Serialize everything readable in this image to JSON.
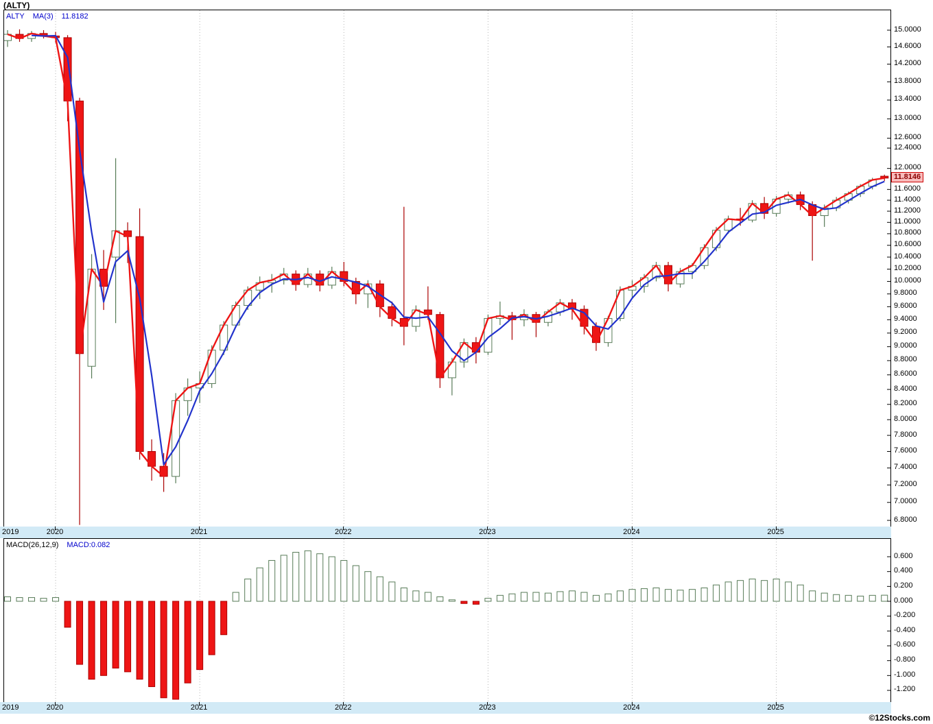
{
  "title": "(ALTY)",
  "legend": {
    "symbol": "ALTY",
    "ma_label": "MA(3)",
    "ma_value": "11.8182"
  },
  "macd_legend": {
    "label": "MACD(26,12,9)",
    "value": "MACD:0.082"
  },
  "price_tag": "11.8146",
  "watermark": "©12Stocks.com",
  "colors": {
    "legend_blue": "#0000cc",
    "up_stroke": "#567a56",
    "down_fill": "#ee1515",
    "down_stroke": "#aa0000",
    "close_line": "#ee1515",
    "ma_line": "#2233cc",
    "grid": "#b5b5b5",
    "axis_strip_bg": "#d2eaf6",
    "tag_bg": "#f8bcbc",
    "tag_border": "#cc0000",
    "tag_text": "#8b0000"
  },
  "chart_data": [
    {
      "type": "candlestick",
      "symbol": "ALTY",
      "interval": "monthly",
      "y_scale": "log",
      "ylim": [
        6.8,
        15.0
      ],
      "last_price": 11.8146,
      "x_tick_labels": [
        "2019",
        "2020",
        "2021",
        "2022",
        "2023",
        "2024",
        "2025"
      ],
      "y_tick_labels": [
        "15.0000",
        "14.6000",
        "14.2000",
        "13.8000",
        "13.4000",
        "13.0000",
        "12.6000",
        "12.4000",
        "12.0000",
        "11.6000",
        "11.4000",
        "11.2000",
        "11.0000",
        "10.8000",
        "10.6000",
        "10.4000",
        "10.2000",
        "10.0000",
        "9.8000",
        "9.6000",
        "9.4000",
        "9.2000",
        "9.0000",
        "8.8000",
        "8.6000",
        "8.4000",
        "8.2000",
        "8.0000",
        "7.8000",
        "7.6000",
        "7.4000",
        "7.2000",
        "7.0000",
        "6.8000"
      ],
      "overlays": [
        {
          "name": "close-line",
          "color": "#ee1515"
        },
        {
          "name": "MA(3)",
          "period": 3,
          "color": "#2233cc",
          "last_value": 11.8182
        }
      ],
      "months": [
        "2019-09",
        "2019-10",
        "2019-11",
        "2019-12",
        "2020-01",
        "2020-02",
        "2020-03",
        "2020-04",
        "2020-05",
        "2020-06",
        "2020-07",
        "2020-08",
        "2020-09",
        "2020-10",
        "2020-11",
        "2020-12",
        "2021-01",
        "2021-02",
        "2021-03",
        "2021-04",
        "2021-05",
        "2021-06",
        "2021-07",
        "2021-08",
        "2021-09",
        "2021-10",
        "2021-11",
        "2021-12",
        "2022-01",
        "2022-02",
        "2022-03",
        "2022-04",
        "2022-05",
        "2022-06",
        "2022-07",
        "2022-08",
        "2022-09",
        "2022-10",
        "2022-11",
        "2022-12",
        "2023-01",
        "2023-02",
        "2023-03",
        "2023-04",
        "2023-05",
        "2023-06",
        "2023-07",
        "2023-08",
        "2023-09",
        "2023-10",
        "2023-11",
        "2023-12",
        "2024-01",
        "2024-02",
        "2024-03",
        "2024-04",
        "2024-05",
        "2024-06",
        "2024-07",
        "2024-08",
        "2024-09",
        "2024-10",
        "2024-11",
        "2024-12",
        "2025-01",
        "2025-02",
        "2025-03",
        "2025-04",
        "2025-05",
        "2025-06",
        "2025-07",
        "2025-08",
        "2025-09",
        "2025-10"
      ],
      "ohlc": [
        [
          14.75,
          15.0,
          14.6,
          14.9
        ],
        [
          14.9,
          15.02,
          14.72,
          14.8
        ],
        [
          14.8,
          14.98,
          14.72,
          14.92
        ],
        [
          14.92,
          15.0,
          14.8,
          14.86
        ],
        [
          14.86,
          14.96,
          14.7,
          14.82
        ],
        [
          14.82,
          14.88,
          12.95,
          13.38
        ],
        [
          13.38,
          13.45,
          6.75,
          8.9
        ],
        [
          8.72,
          10.45,
          8.55,
          10.2
        ],
        [
          10.2,
          10.52,
          9.55,
          9.92
        ],
        [
          10.4,
          12.2,
          9.35,
          10.85
        ],
        [
          10.85,
          11.0,
          10.3,
          10.75
        ],
        [
          10.75,
          11.25,
          7.5,
          7.6
        ],
        [
          7.6,
          7.75,
          7.25,
          7.42
        ],
        [
          7.42,
          7.58,
          7.12,
          7.3
        ],
        [
          7.3,
          8.35,
          7.22,
          8.25
        ],
        [
          8.25,
          8.55,
          8.05,
          8.42
        ],
        [
          8.42,
          8.65,
          8.22,
          8.48
        ],
        [
          8.48,
          9.02,
          8.42,
          8.95
        ],
        [
          8.95,
          9.38,
          8.88,
          9.32
        ],
        [
          9.32,
          9.68,
          9.28,
          9.62
        ],
        [
          9.62,
          9.92,
          9.55,
          9.86
        ],
        [
          9.86,
          10.08,
          9.72,
          9.98
        ],
        [
          9.98,
          10.12,
          9.82,
          10.02
        ],
        [
          10.02,
          10.22,
          9.95,
          10.12
        ],
        [
          10.12,
          10.18,
          9.85,
          9.95
        ],
        [
          9.95,
          10.22,
          9.9,
          10.12
        ],
        [
          10.12,
          10.18,
          9.84,
          9.94
        ],
        [
          9.94,
          10.24,
          9.88,
          10.16
        ],
        [
          10.16,
          10.32,
          9.92,
          10.0
        ],
        [
          10.0,
          10.06,
          9.64,
          9.8
        ],
        [
          9.8,
          10.02,
          9.58,
          9.96
        ],
        [
          9.96,
          10.02,
          9.44,
          9.6
        ],
        [
          9.6,
          9.68,
          9.3,
          9.42
        ],
        [
          9.42,
          11.28,
          9.02,
          9.3
        ],
        [
          9.3,
          9.62,
          9.22,
          9.55
        ],
        [
          9.55,
          9.92,
          9.4,
          9.48
        ],
        [
          9.48,
          9.52,
          8.42,
          8.56
        ],
        [
          8.56,
          8.84,
          8.32,
          8.78
        ],
        [
          8.78,
          9.12,
          8.7,
          9.06
        ],
        [
          9.06,
          9.14,
          8.76,
          8.92
        ],
        [
          8.92,
          9.48,
          8.88,
          9.42
        ],
        [
          9.42,
          9.68,
          9.32,
          9.46
        ],
        [
          9.46,
          9.52,
          9.1,
          9.4
        ],
        [
          9.4,
          9.56,
          9.3,
          9.48
        ],
        [
          9.48,
          9.52,
          9.14,
          9.36
        ],
        [
          9.36,
          9.56,
          9.3,
          9.52
        ],
        [
          9.52,
          9.72,
          9.46,
          9.66
        ],
        [
          9.66,
          9.72,
          9.4,
          9.56
        ],
        [
          9.56,
          9.62,
          9.18,
          9.3
        ],
        [
          9.3,
          9.36,
          8.94,
          9.06
        ],
        [
          9.06,
          9.46,
          9.0,
          9.42
        ],
        [
          9.42,
          9.92,
          9.38,
          9.86
        ],
        [
          9.86,
          10.02,
          9.72,
          9.92
        ],
        [
          9.92,
          10.12,
          9.82,
          10.06
        ],
        [
          10.06,
          10.32,
          10.0,
          10.26
        ],
        [
          10.26,
          10.32,
          9.84,
          9.96
        ],
        [
          9.96,
          10.22,
          9.9,
          10.16
        ],
        [
          10.16,
          10.3,
          10.04,
          10.26
        ],
        [
          10.26,
          10.62,
          10.2,
          10.56
        ],
        [
          10.56,
          10.92,
          10.5,
          10.86
        ],
        [
          10.86,
          11.12,
          10.8,
          11.06
        ],
        [
          11.06,
          11.26,
          10.94,
          11.04
        ],
        [
          11.04,
          11.4,
          11.0,
          11.34
        ],
        [
          11.34,
          11.46,
          11.06,
          11.16
        ],
        [
          11.16,
          11.48,
          11.1,
          11.42
        ],
        [
          11.42,
          11.56,
          11.34,
          11.5
        ],
        [
          11.5,
          11.56,
          11.22,
          11.32
        ],
        [
          11.32,
          11.38,
          10.34,
          11.12
        ],
        [
          11.12,
          11.32,
          10.92,
          11.26
        ],
        [
          11.26,
          11.46,
          11.2,
          11.4
        ],
        [
          11.4,
          11.56,
          11.34,
          11.52
        ],
        [
          11.52,
          11.7,
          11.46,
          11.66
        ],
        [
          11.66,
          11.82,
          11.6,
          11.78
        ],
        [
          11.85,
          11.88,
          11.76,
          11.8146
        ]
      ]
    },
    {
      "type": "bar",
      "name": "MACD(26,12,9)",
      "last_value": 0.082,
      "ylim": [
        -1.35,
        0.72
      ],
      "y_tick_labels": [
        "0.600",
        "0.400",
        "0.200",
        "0.000",
        "-0.200",
        "-0.400",
        "-0.600",
        "-0.800",
        "-1.000",
        "-1.200"
      ],
      "positive_bar_style": "hollow-green",
      "negative_bar_style": "filled-red",
      "values": [
        0.06,
        0.05,
        0.05,
        0.04,
        0.05,
        -0.35,
        -0.85,
        -1.05,
        -1.0,
        -0.9,
        -0.95,
        -1.05,
        -1.15,
        -1.3,
        -1.32,
        -1.1,
        -0.92,
        -0.72,
        -0.45,
        0.12,
        0.3,
        0.45,
        0.55,
        0.62,
        0.66,
        0.68,
        0.64,
        0.6,
        0.55,
        0.48,
        0.4,
        0.33,
        0.26,
        0.18,
        0.14,
        0.12,
        0.06,
        0.02,
        -0.03,
        -0.04,
        0.04,
        0.08,
        0.1,
        0.12,
        0.12,
        0.11,
        0.13,
        0.14,
        0.12,
        0.08,
        0.1,
        0.14,
        0.16,
        0.17,
        0.18,
        0.16,
        0.15,
        0.16,
        0.18,
        0.22,
        0.26,
        0.28,
        0.3,
        0.28,
        0.3,
        0.26,
        0.22,
        0.14,
        0.11,
        0.09,
        0.08,
        0.07,
        0.08,
        0.082
      ]
    }
  ]
}
